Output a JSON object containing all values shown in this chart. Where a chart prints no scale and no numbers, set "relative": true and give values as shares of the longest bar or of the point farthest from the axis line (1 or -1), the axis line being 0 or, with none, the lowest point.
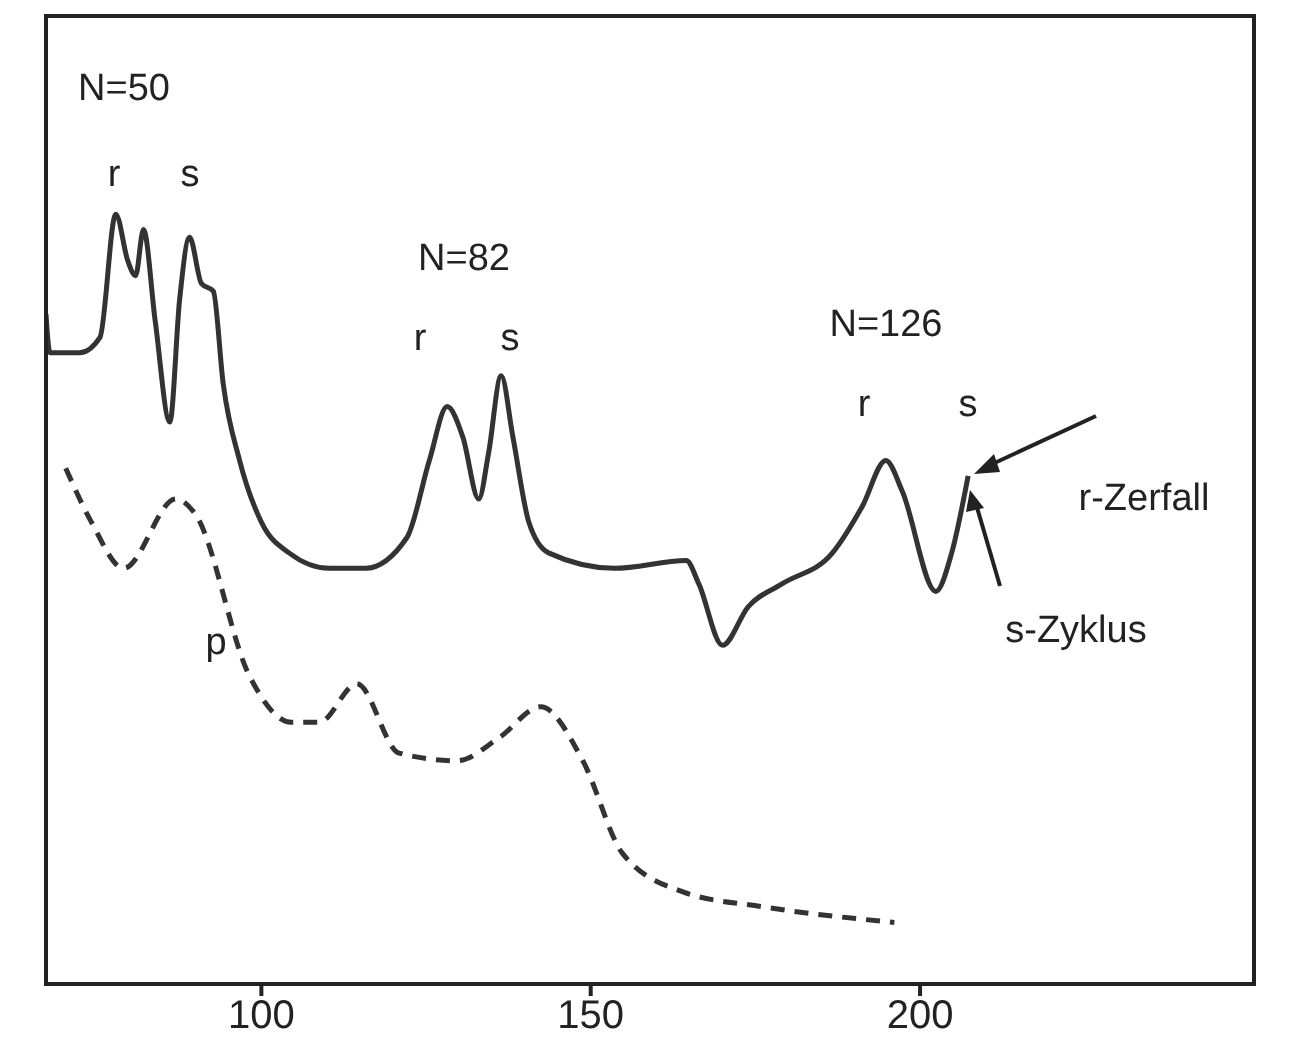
{
  "chart_data": {
    "type": "line",
    "relative": true,
    "xlim": [
      67,
      251
    ],
    "xticks": [
      100,
      150,
      200
    ],
    "marker": "none",
    "grid": false,
    "series": [
      {
        "color": "#333333",
        "line_style": "solid",
        "x": [
          67.3,
          67.9,
          72.4,
          75.5,
          77.9,
          79.7,
          80.9,
          82.1,
          83.9,
          86.1,
          87.6,
          89.1,
          90.9,
          92.7,
          94.2,
          96.7,
          100,
          104.2,
          110.3,
          115.8,
          122.1,
          125.5,
          128.2,
          130.6,
          133,
          134.5,
          136.4,
          138.2,
          140.6,
          143.6,
          153.6,
          164.5,
          166.4,
          170,
          173.9,
          179.1,
          186.7,
          191.2,
          194.8,
          197.3,
          202.4,
          204.8,
          207.3
        ],
        "values": [
          0.87,
          0.82,
          0.82,
          0.84,
          1,
          0.94,
          0.92,
          0.98,
          0.86,
          0.73,
          0.89,
          0.97,
          0.91,
          0.9,
          0.78,
          0.68,
          0.6,
          0.56,
          0.54,
          0.54,
          0.58,
          0.68,
          0.75,
          0.71,
          0.63,
          0.69,
          0.79,
          0.71,
          0.6,
          0.56,
          0.54,
          0.55,
          0.52,
          0.44,
          0.49,
          0.52,
          0.56,
          0.62,
          0.68,
          0.64,
          0.51,
          0.56,
          0.66
        ]
      },
      {
        "color": "#333333",
        "line_style": "dashed",
        "x": [
          70.3,
          74.2,
          79.1,
          87,
          90,
          98.2,
          104.5,
          108.8,
          114.5,
          120.9,
          129.7,
          136.1,
          142.4,
          148.8,
          154.8,
          163.9,
          176.4,
          196.1
        ],
        "values": [
          0.67,
          0.6,
          0.54,
          0.63,
          0.61,
          0.4,
          0.34,
          0.34,
          0.39,
          0.3,
          0.29,
          0.32,
          0.36,
          0.29,
          0.17,
          0.12,
          0.1,
          0.08
        ]
      }
    ],
    "annotations": [
      "N=50",
      "r",
      "s",
      "N=82",
      "r",
      "s",
      "N=126",
      "r",
      "s",
      "r-Zerfall",
      "s-Zyklus",
      "p"
    ]
  }
}
